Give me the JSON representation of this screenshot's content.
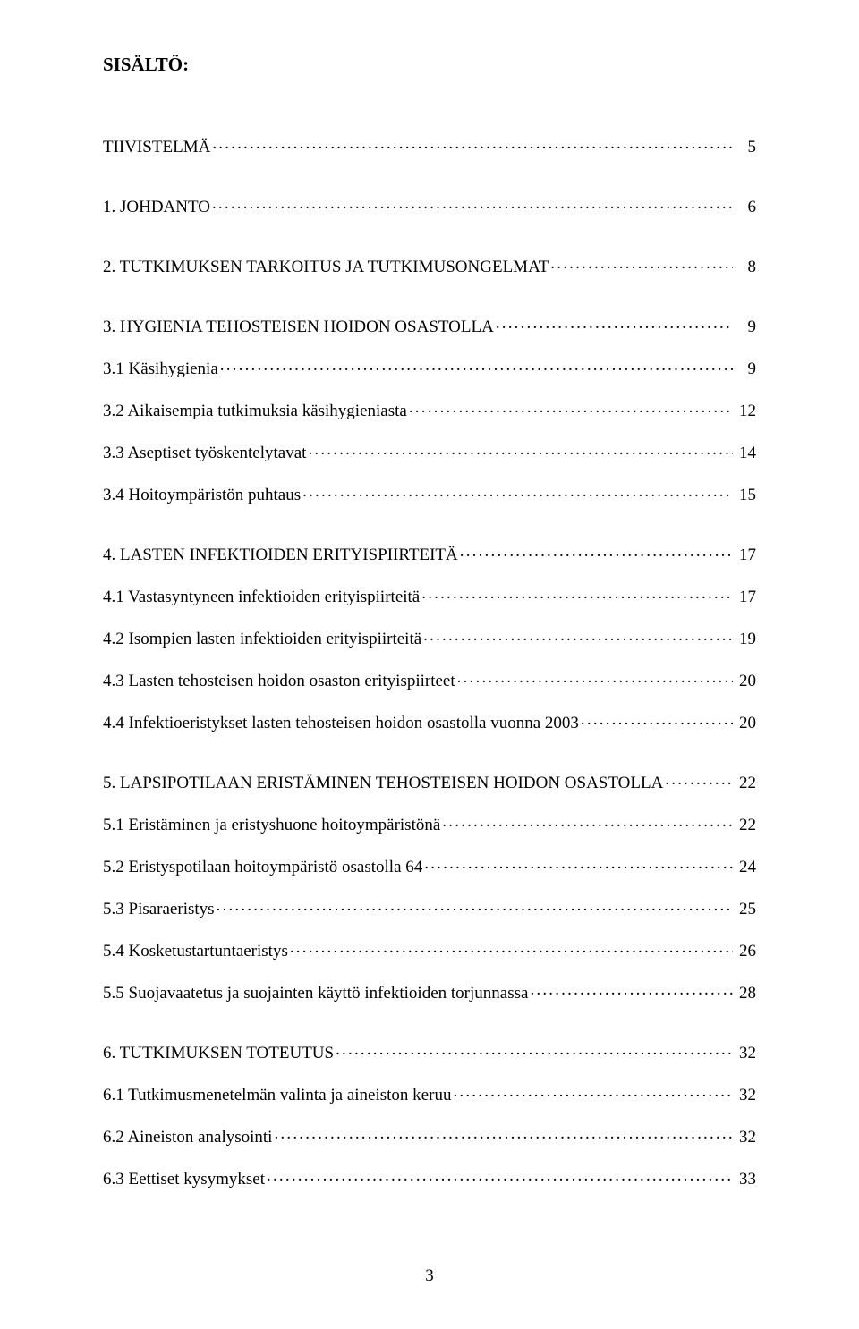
{
  "heading": "SISÄLTÖ:",
  "page_number": "3",
  "colors": {
    "background": "#ffffff",
    "text": "#000000"
  },
  "typography": {
    "family": "Times New Roman",
    "body_pt": 14,
    "heading_pt": 16,
    "heading_weight": "bold"
  },
  "groups": [
    {
      "items": [
        {
          "title": "TIIVISTELMÄ",
          "page": "5"
        }
      ]
    },
    {
      "items": [
        {
          "title": "1. JOHDANTO",
          "page": "6"
        }
      ]
    },
    {
      "items": [
        {
          "title": "2. TUTKIMUKSEN TARKOITUS JA  TUTKIMUSONGELMAT",
          "page": "8"
        }
      ]
    },
    {
      "items": [
        {
          "title": "3. HYGIENIA TEHOSTEISEN HOIDON OSASTOLLA",
          "page": "9"
        },
        {
          "title": "3.1 Käsihygienia",
          "page": "9"
        },
        {
          "title": "3.2 Aikaisempia tutkimuksia käsihygieniasta",
          "page": "12"
        },
        {
          "title": "3.3 Aseptiset työskentelytavat",
          "page": "14"
        },
        {
          "title": "3.4 Hoitoympäristön puhtaus",
          "page": "15"
        }
      ]
    },
    {
      "items": [
        {
          "title": "4. LASTEN INFEKTIOIDEN ERITYISPIIRTEITÄ",
          "page": "17"
        },
        {
          "title": "4.1 Vastasyntyneen infektioiden erityispiirteitä",
          "page": "17"
        },
        {
          "title": "4.2 Isompien lasten infektioiden erityispiirteitä",
          "page": "19"
        },
        {
          "title": "4.3 Lasten tehosteisen hoidon osaston erityispiirteet",
          "page": "20"
        },
        {
          "title": "4.4 Infektioeristykset lasten tehosteisen hoidon osastolla vuonna 2003",
          "page": "20"
        }
      ]
    },
    {
      "items": [
        {
          "title": "5. LAPSIPOTILAAN ERISTÄMINEN TEHOSTEISEN HOIDON OSASTOLLA",
          "page": "22"
        },
        {
          "title": "5.1 Eristäminen ja eristyshuone hoitoympäristönä",
          "page": "22"
        },
        {
          "title": "5.2 Eristyspotilaan hoitoympäristö osastolla 64",
          "page": "24"
        },
        {
          "title": "5.3 Pisaraeristys",
          "page": "25"
        },
        {
          "title": "5.4 Kosketustartuntaeristys",
          "page": "26"
        },
        {
          "title": "5.5 Suojavaatetus ja suojainten käyttö infektioiden torjunnassa",
          "page": "28"
        }
      ]
    },
    {
      "items": [
        {
          "title": "6. TUTKIMUKSEN TOTEUTUS",
          "page": "32"
        },
        {
          "title": "6.1 Tutkimusmenetelmän valinta ja aineiston keruu",
          "page": "32"
        },
        {
          "title": "6.2 Aineiston analysointi",
          "page": "32"
        },
        {
          "title": "6.3 Eettiset kysymykset",
          "page": "33"
        }
      ]
    }
  ]
}
